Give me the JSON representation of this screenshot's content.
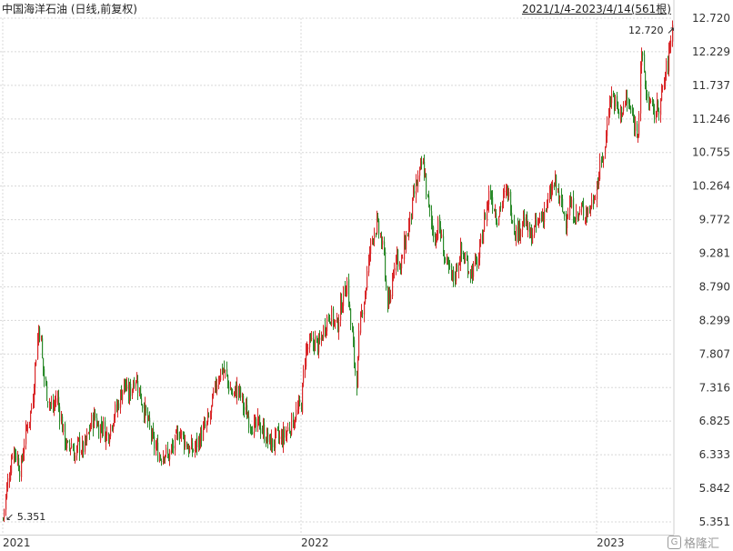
{
  "chart_data": {
    "type": "candlestick",
    "title": "中国海洋石油 (日线,前复权)",
    "date_range": "2021/1/4-2023/4/14(561根)",
    "y_ticks": [
      "12.720",
      "12.229",
      "11.737",
      "11.246",
      "10.755",
      "10.264",
      "9.772",
      "9.281",
      "8.790",
      "8.299",
      "7.807",
      "7.316",
      "6.825",
      "6.333",
      "5.842",
      "5.351"
    ],
    "ylim": [
      5.351,
      12.72
    ],
    "x_ticks": [
      "2021",
      "2022",
      "2023"
    ],
    "grid": true,
    "up_color": "#d9282a",
    "down_color": "#2a8a2a",
    "annotations": {
      "max": "12.720",
      "min": "5.351"
    },
    "path": [
      [
        0,
        5.45
      ],
      [
        3,
        5.4
      ],
      [
        6,
        5.75
      ],
      [
        10,
        6.1
      ],
      [
        14,
        6.45
      ],
      [
        18,
        6.3
      ],
      [
        22,
        6.1
      ],
      [
        26,
        6.5
      ],
      [
        30,
        6.8
      ],
      [
        34,
        7.0
      ],
      [
        38,
        7.6
      ],
      [
        40,
        7.9
      ],
      [
        42,
        8.2
      ],
      [
        44,
        8.1
      ],
      [
        46,
        7.7
      ],
      [
        50,
        7.3
      ],
      [
        54,
        7.1
      ],
      [
        58,
        7.0
      ],
      [
        62,
        7.2
      ],
      [
        66,
        6.9
      ],
      [
        70,
        6.6
      ],
      [
        74,
        6.4
      ],
      [
        78,
        6.5
      ],
      [
        82,
        6.3
      ],
      [
        86,
        6.5
      ],
      [
        90,
        6.4
      ],
      [
        94,
        6.5
      ],
      [
        100,
        6.8
      ],
      [
        104,
        6.9
      ],
      [
        108,
        6.7
      ],
      [
        112,
        6.8
      ],
      [
        116,
        6.6
      ],
      [
        120,
        6.7
      ],
      [
        124,
        6.9
      ],
      [
        128,
        7.0
      ],
      [
        132,
        7.2
      ],
      [
        136,
        7.4
      ],
      [
        140,
        7.2
      ],
      [
        144,
        7.3
      ],
      [
        148,
        7.5
      ],
      [
        152,
        7.3
      ],
      [
        156,
        7.1
      ],
      [
        160,
        6.9
      ],
      [
        164,
        6.7
      ],
      [
        168,
        6.5
      ],
      [
        172,
        6.4
      ],
      [
        176,
        6.3
      ],
      [
        180,
        6.4
      ],
      [
        184,
        6.3
      ],
      [
        188,
        6.4
      ],
      [
        192,
        6.5
      ],
      [
        196,
        6.7
      ],
      [
        200,
        6.6
      ],
      [
        204,
        6.5
      ],
      [
        208,
        6.4
      ],
      [
        212,
        6.4
      ],
      [
        216,
        6.5
      ],
      [
        220,
        6.6
      ],
      [
        224,
        6.7
      ],
      [
        228,
        6.8
      ],
      [
        232,
        7.0
      ],
      [
        236,
        7.3
      ],
      [
        240,
        7.5
      ],
      [
        244,
        7.6
      ],
      [
        248,
        7.5
      ],
      [
        252,
        7.3
      ],
      [
        256,
        7.2
      ],
      [
        260,
        7.3
      ],
      [
        264,
        7.2
      ],
      [
        268,
        7.0
      ],
      [
        272,
        6.9
      ],
      [
        276,
        6.8
      ],
      [
        280,
        6.7
      ],
      [
        284,
        6.8
      ],
      [
        288,
        6.7
      ],
      [
        292,
        6.6
      ],
      [
        296,
        6.5
      ],
      [
        300,
        6.5
      ],
      [
        304,
        6.6
      ],
      [
        308,
        6.55
      ],
      [
        312,
        6.6
      ],
      [
        316,
        6.7
      ],
      [
        320,
        6.8
      ],
      [
        324,
        6.9
      ],
      [
        328,
        7.0
      ],
      [
        331,
        7.1
      ],
      [
        335,
        7.85
      ],
      [
        338,
        7.9
      ],
      [
        342,
        7.95
      ],
      [
        346,
        8.0
      ],
      [
        350,
        7.9
      ],
      [
        354,
        8.1
      ],
      [
        358,
        8.3
      ],
      [
        362,
        8.4
      ],
      [
        366,
        8.3
      ],
      [
        370,
        8.2
      ],
      [
        374,
        8.5
      ],
      [
        378,
        8.7
      ],
      [
        381,
        8.9
      ],
      [
        384,
        8.4
      ],
      [
        387,
        8.0
      ],
      [
        390,
        7.6
      ],
      [
        392,
        7.4
      ],
      [
        395,
        8.2
      ],
      [
        398,
        8.5
      ],
      [
        402,
        8.8
      ],
      [
        406,
        9.3
      ],
      [
        410,
        9.6
      ],
      [
        414,
        9.7
      ],
      [
        418,
        9.5
      ],
      [
        422,
        9.2
      ],
      [
        425,
        8.6
      ],
      [
        428,
        8.5
      ],
      [
        432,
        9.1
      ],
      [
        436,
        9.3
      ],
      [
        440,
        9.0
      ],
      [
        444,
        9.4
      ],
      [
        448,
        9.6
      ],
      [
        452,
        9.9
      ],
      [
        456,
        10.2
      ],
      [
        460,
        10.4
      ],
      [
        464,
        10.6
      ],
      [
        467,
        10.4
      ],
      [
        470,
        10.0
      ],
      [
        474,
        9.7
      ],
      [
        478,
        9.5
      ],
      [
        482,
        9.7
      ],
      [
        486,
        9.4
      ],
      [
        490,
        9.1
      ],
      [
        494,
        9.0
      ],
      [
        498,
        8.9
      ],
      [
        502,
        9.1
      ],
      [
        506,
        9.3
      ],
      [
        510,
        9.2
      ],
      [
        514,
        9.1
      ],
      [
        518,
        9.0
      ],
      [
        522,
        9.1
      ],
      [
        526,
        9.2
      ],
      [
        530,
        9.6
      ],
      [
        534,
        9.9
      ],
      [
        538,
        10.2
      ],
      [
        542,
        10.0
      ],
      [
        546,
        9.8
      ],
      [
        550,
        10.0
      ],
      [
        554,
        10.1
      ],
      [
        558,
        10.2
      ],
      [
        562,
        9.9
      ],
      [
        566,
        9.6
      ],
      [
        570,
        9.6
      ],
      [
        574,
        9.8
      ],
      [
        578,
        9.7
      ],
      [
        582,
        9.5
      ],
      [
        586,
        9.6
      ],
      [
        590,
        9.7
      ],
      [
        594,
        9.8
      ],
      [
        598,
        9.9
      ],
      [
        602,
        10.0
      ],
      [
        606,
        10.2
      ],
      [
        610,
        10.3
      ],
      [
        614,
        10.1
      ],
      [
        618,
        9.9
      ],
      [
        622,
        9.8
      ],
      [
        626,
        10.0
      ],
      [
        630,
        9.9
      ],
      [
        634,
        9.8
      ],
      [
        638,
        9.9
      ],
      [
        642,
        9.9
      ],
      [
        646,
        9.9
      ],
      [
        650,
        10.0
      ],
      [
        654,
        10.2
      ],
      [
        658,
        10.4
      ],
      [
        662,
        10.7
      ],
      [
        665,
        10.8
      ],
      [
        668,
        11.4
      ],
      [
        672,
        11.6
      ],
      [
        676,
        11.5
      ],
      [
        680,
        11.3
      ],
      [
        684,
        11.4
      ],
      [
        688,
        11.5
      ],
      [
        692,
        11.4
      ],
      [
        696,
        11.2
      ],
      [
        700,
        11.1
      ],
      [
        702,
        11.2
      ],
      [
        704,
        12.2
      ],
      [
        707,
        12.0
      ],
      [
        710,
        11.6
      ],
      [
        714,
        11.5
      ],
      [
        718,
        11.3
      ],
      [
        722,
        11.4
      ],
      [
        726,
        11.5
      ],
      [
        730,
        11.8
      ],
      [
        734,
        12.1
      ],
      [
        737,
        12.4
      ],
      [
        739,
        12.6
      ]
    ]
  }
}
